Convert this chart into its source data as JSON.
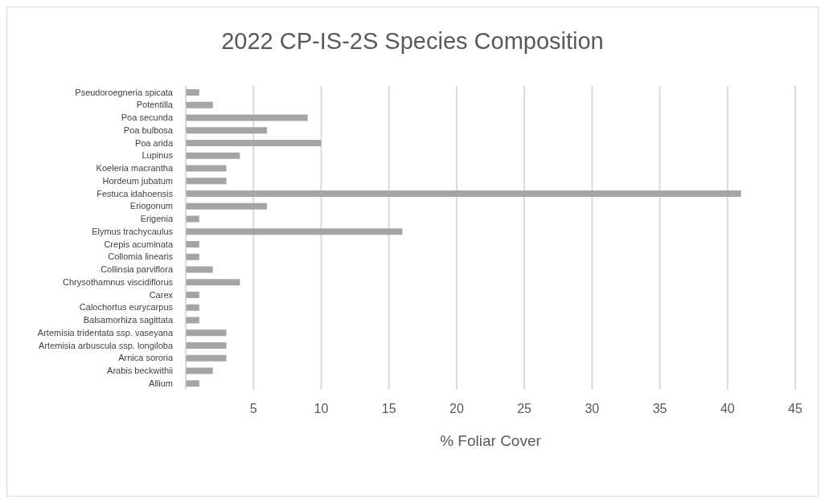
{
  "chart_data": {
    "type": "bar",
    "orientation": "horizontal",
    "title": "2022 CP-IS-2S Species Composition",
    "xlabel": "% Foliar Cover",
    "categories": [
      "Pseudoroegneria spicata",
      "Potentilla",
      "Poa secunda",
      "Poa bulbosa",
      "Poa arida",
      "Lupinus",
      "Koeleria macrantha",
      "Hordeum jubatum",
      "Festuca idahoensis",
      "Eriogonum",
      "Erigenia",
      "Elymus trachycaulus",
      "Crepis acuminata",
      "Collomia linearis",
      "Collinsia parviflora",
      "Chrysothamnus viscidiflorus",
      "Carex",
      "Calochortus eurycarpus",
      "Balsamorhiza sagittata",
      "Artemisia tridentata ssp. vaseyana",
      "Artemisia arbuscula ssp. longiloba",
      "Arnica sororia",
      "Arabis beckwithii",
      "Allium"
    ],
    "values": [
      1,
      2,
      9,
      6,
      10,
      4,
      3,
      3,
      41,
      6,
      1,
      16,
      1,
      1,
      2,
      4,
      1,
      1,
      1,
      3,
      3,
      3,
      2,
      1
    ],
    "color": "#a5a5a5",
    "xlim": [
      0,
      45
    ],
    "xticks": [
      5,
      10,
      15,
      20,
      25,
      30,
      35,
      40,
      45
    ],
    "grid": "x"
  }
}
